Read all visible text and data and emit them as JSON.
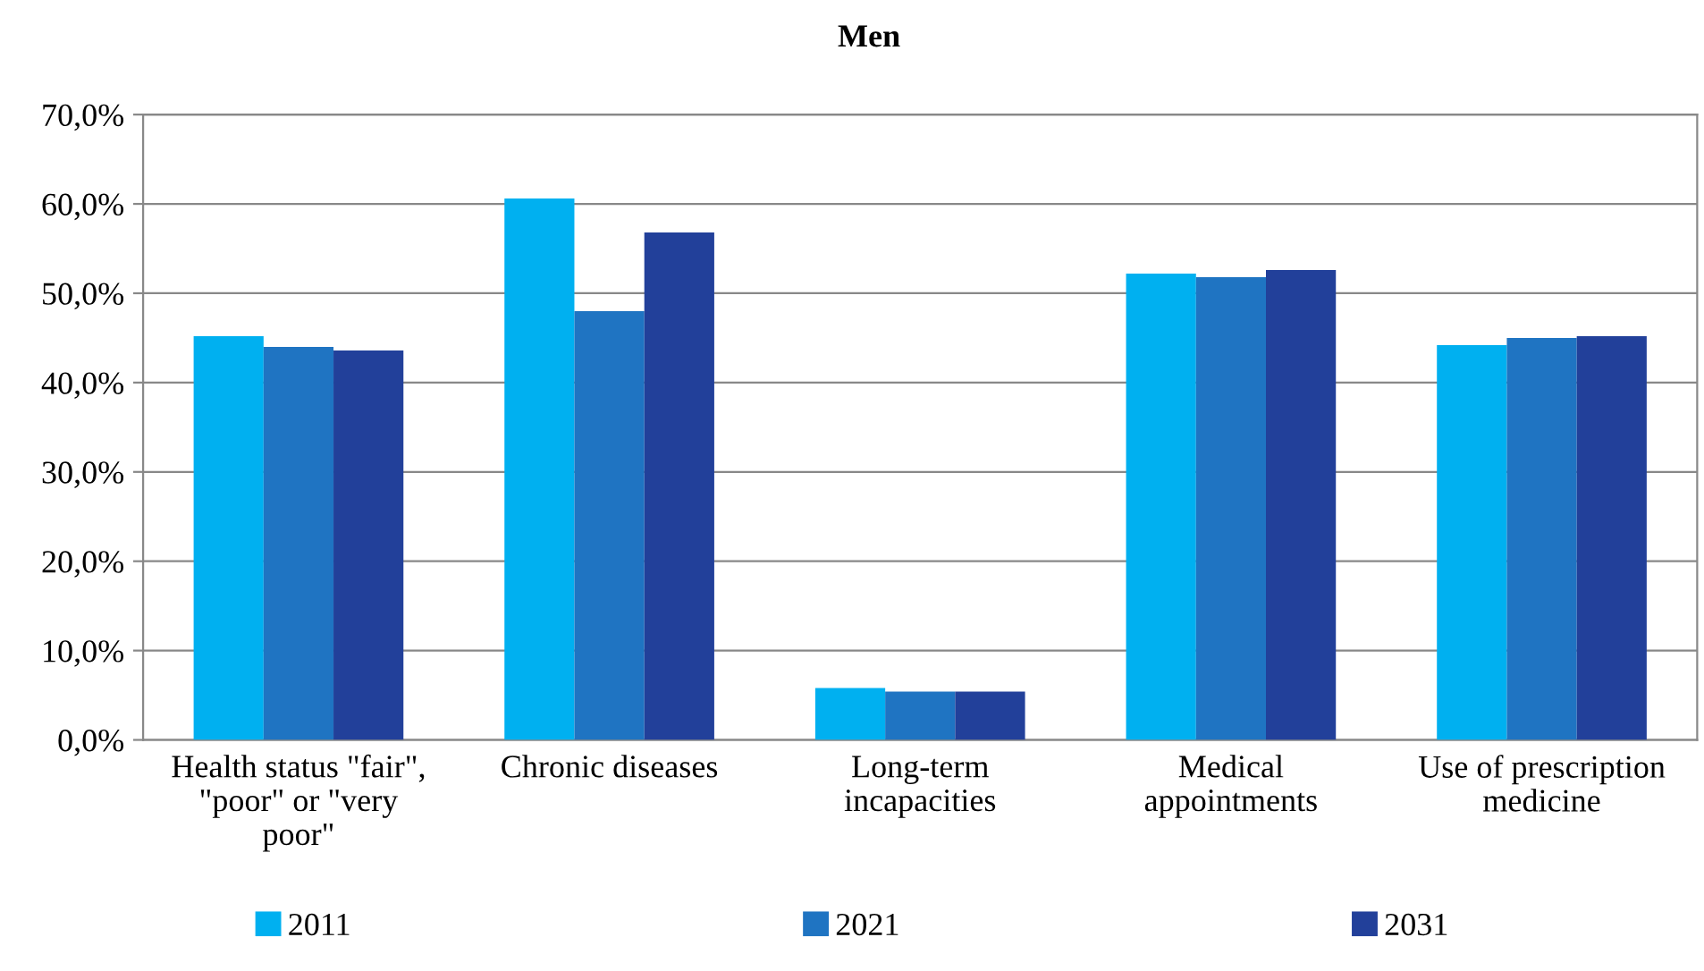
{
  "chart_data": {
    "type": "bar",
    "title": "Men",
    "categories": [
      "Health status \"fair\",\n\"poor\" or \"very\npoor\"",
      "Chronic diseases",
      "Long-term\nincapacities",
      "Medical\nappointments",
      "Use of prescription\nmedicine"
    ],
    "series": [
      {
        "name": "2011",
        "color": "#00b0f0",
        "values": [
          45.2,
          60.6,
          5.8,
          52.2,
          44.2
        ]
      },
      {
        "name": "2021",
        "color": "#1f74c2",
        "values": [
          44.0,
          48.0,
          5.4,
          51.8,
          45.0
        ]
      },
      {
        "name": "2031",
        "color": "#22409a",
        "values": [
          43.6,
          56.8,
          5.4,
          52.6,
          45.2
        ]
      }
    ],
    "ylim": [
      0,
      70
    ],
    "yticks": [
      {
        "value": 0,
        "label": "0,0%"
      },
      {
        "value": 10,
        "label": "10,0%"
      },
      {
        "value": 20,
        "label": "20,0%"
      },
      {
        "value": 30,
        "label": "30,0%"
      },
      {
        "value": 40,
        "label": "40,0%"
      },
      {
        "value": 50,
        "label": "50,0%"
      },
      {
        "value": 60,
        "label": "60,0%"
      },
      {
        "value": 70,
        "label": "70,0%"
      }
    ],
    "grid": "y",
    "legend": "bottom"
  }
}
